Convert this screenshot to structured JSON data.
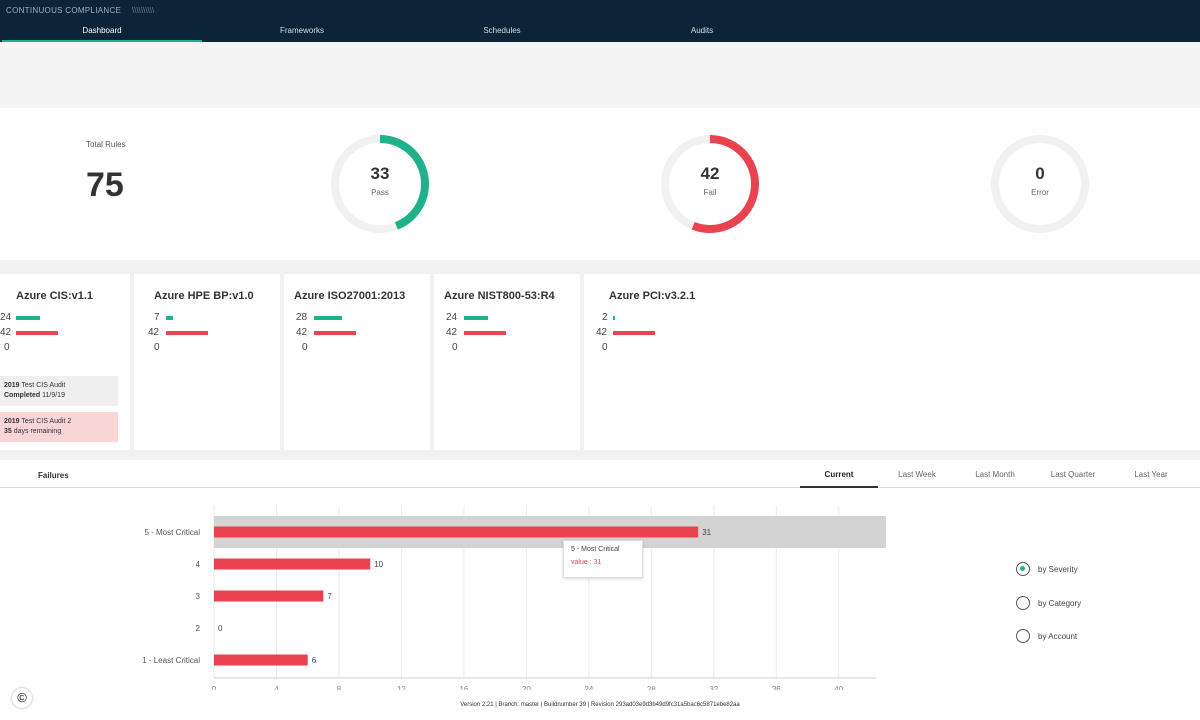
{
  "app": {
    "title": "CONTINUOUS COMPLIANCE",
    "user": "\\\\\\\\\\\\\\\\\\\\"
  },
  "nav": {
    "tabs": [
      {
        "label": "Dashboard",
        "active": true
      },
      {
        "label": "Frameworks",
        "active": false
      },
      {
        "label": "Schedules",
        "active": false
      },
      {
        "label": "Audits",
        "active": false
      }
    ]
  },
  "summary": {
    "total_label": "Total Rules",
    "total_value": "75",
    "pass": {
      "value": 33,
      "label": "Pass",
      "color": "#1fb18a"
    },
    "fail": {
      "value": 42,
      "label": "Fail",
      "color": "#e8434f"
    },
    "error": {
      "value": 0,
      "label": "Error",
      "color": "#cccccc"
    }
  },
  "frameworks": [
    {
      "name": "Azure CIS:v1.1",
      "pass": "24",
      "fail": "42",
      "error": "0",
      "audits": [
        {
          "bold": "2019",
          "text": "Test CIS Audit",
          "bold2": "Completed",
          "text2": "11/9/19"
        },
        {
          "bold": "2019",
          "text": "Test CIS Audit 2",
          "bold2": "35",
          "text2": "days remaining"
        }
      ]
    },
    {
      "name": "Azure HPE BP:v1.0",
      "pass": "7",
      "fail": "42",
      "error": "0"
    },
    {
      "name": "Azure ISO27001:2013",
      "pass": "28",
      "fail": "42",
      "error": "0"
    },
    {
      "name": "Azure NIST800-53:R4",
      "pass": "24",
      "fail": "42",
      "error": "0"
    },
    {
      "name": "Azure PCI:v3.2.1",
      "pass": "2",
      "fail": "42",
      "error": "0"
    }
  ],
  "failures": {
    "title": "Failures",
    "periods": [
      {
        "label": "Current",
        "active": true
      },
      {
        "label": "Last Week",
        "active": false
      },
      {
        "label": "Last Month",
        "active": false
      },
      {
        "label": "Last Quarter",
        "active": false
      },
      {
        "label": "Last Year",
        "active": false
      }
    ],
    "group_by": [
      {
        "label": "by Severity",
        "checked": true
      },
      {
        "label": "by Category",
        "checked": false
      },
      {
        "label": "by Account",
        "checked": false
      }
    ],
    "tooltip": {
      "title": "5 - Most Critical",
      "value": "value : 31"
    }
  },
  "chart_data": {
    "type": "bar",
    "orientation": "horizontal",
    "categories": [
      "5 - Most Critical",
      "4",
      "3",
      "2",
      "1 - Least Critical"
    ],
    "values": [
      31,
      10,
      7,
      0,
      6
    ],
    "xlim": [
      0,
      42
    ],
    "xticks": [
      0,
      4,
      8,
      12,
      16,
      20,
      24,
      28,
      32,
      36,
      40
    ],
    "grid": true,
    "bar_color": "#e8434f",
    "highlight_category": "5 - Most Critical"
  },
  "footer": {
    "text": "Version 2.21 | Branch: master | Buildnumber 39 | Revision 293ad03e9d3b49d9fc31a5bac6c5871ebe82aa"
  },
  "copyright": "©"
}
